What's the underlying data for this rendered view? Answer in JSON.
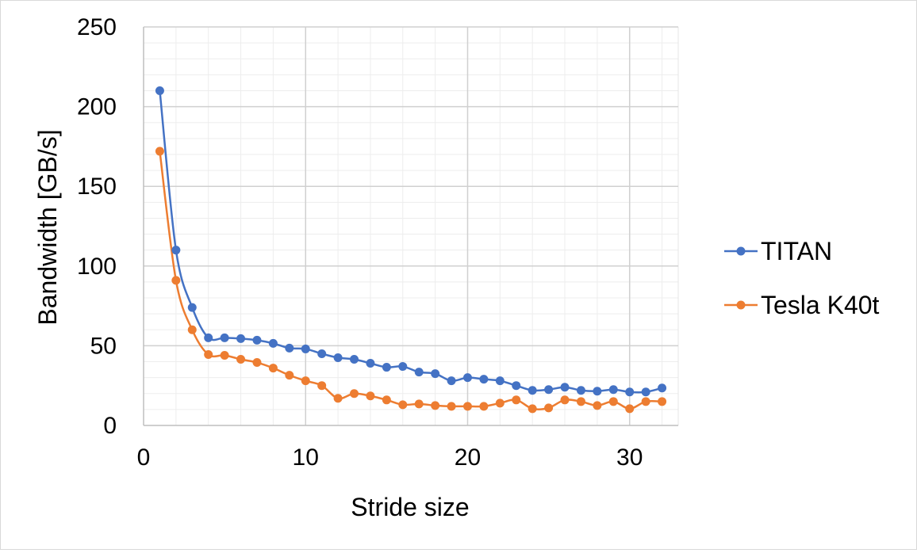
{
  "chart_data": {
    "type": "line",
    "title": "",
    "xlabel": "Stride size",
    "ylabel": "Bandwidth [GB/s]",
    "xlim": [
      0,
      33
    ],
    "ylim": [
      0,
      250
    ],
    "x_ticks": [
      0,
      10,
      20,
      30
    ],
    "y_ticks": [
      0,
      50,
      100,
      150,
      200,
      250
    ],
    "x_minor_step": 2,
    "y_minor_step": 10,
    "grid": true,
    "legend_position": "right",
    "smooth": true,
    "series": [
      {
        "name": "TITAN",
        "color": "#4472c4",
        "x": [
          1,
          2,
          3,
          4,
          5,
          6,
          7,
          8,
          9,
          10,
          11,
          12,
          13,
          14,
          15,
          16,
          17,
          18,
          19,
          20,
          21,
          22,
          23,
          24,
          25,
          26,
          27,
          28,
          29,
          30,
          31,
          32
        ],
        "values": [
          210,
          110,
          74,
          55,
          55,
          54.5,
          53.5,
          51.5,
          48.5,
          48,
          45,
          42.5,
          41.5,
          39,
          36.5,
          37,
          33.5,
          32.5,
          28,
          30,
          29,
          28,
          25,
          22,
          22.5,
          24,
          22,
          21.5,
          22.5,
          21,
          21,
          23.5
        ]
      },
      {
        "name": "Tesla K40t",
        "color": "#ed7d31",
        "x": [
          1,
          2,
          3,
          4,
          5,
          6,
          7,
          8,
          9,
          10,
          11,
          12,
          13,
          14,
          15,
          16,
          17,
          18,
          19,
          20,
          21,
          22,
          23,
          24,
          25,
          26,
          27,
          28,
          29,
          30,
          31,
          32
        ],
        "values": [
          172,
          91,
          60,
          44.5,
          44,
          41.5,
          39.5,
          36,
          31.5,
          28,
          25,
          17,
          20,
          18.5,
          16,
          13,
          13.5,
          12.5,
          12,
          12,
          12,
          14,
          16,
          10.5,
          11,
          16,
          15,
          12.5,
          15,
          10.5,
          15,
          15
        ]
      }
    ]
  }
}
